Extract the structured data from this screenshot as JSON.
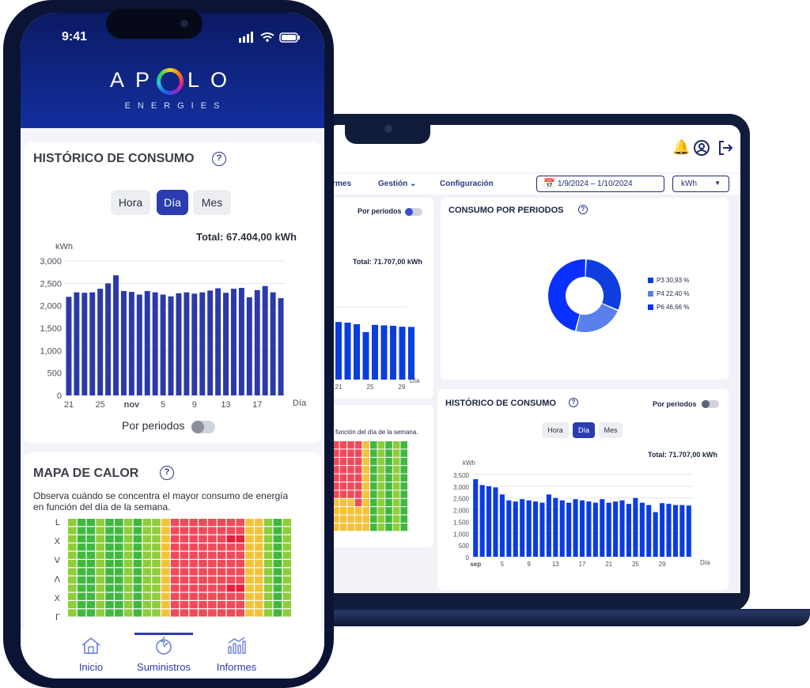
{
  "phone": {
    "status_time": "9:41",
    "brand": {
      "name_left": "AP",
      "name_right": "LO",
      "tagline": "ENERGIES"
    },
    "history": {
      "title": "HISTÓRICO DE CONSUMO",
      "help": "?",
      "tabs": [
        "Hora",
        "Día",
        "Mes"
      ],
      "active_tab": "Día",
      "total": "Total: 67.404,00 kWh",
      "period_toggle_label": "Por periodos"
    },
    "heatmap": {
      "title": "MAPA DE CALOR",
      "help": "?",
      "description_line1": "Observa cuándo se concentra el mayor consumo de energía",
      "description_line2": "en función del día de la semana.",
      "row_labels": [
        "L",
        "X",
        "V",
        "Λ",
        "X",
        "Γ"
      ],
      "colors": {
        "low": "#3fb83f",
        "mid": "#8fcc3a",
        "warm": "#f2c23a",
        "high": "#f04a5a",
        "peak": "#e8203a"
      }
    },
    "bottom_nav": [
      {
        "label": "Inicio",
        "icon": "home-icon"
      },
      {
        "label": "Suministros",
        "icon": "energy-meter-icon"
      },
      {
        "label": "Informes",
        "icon": "reports-chart-icon"
      }
    ],
    "active_nav": "Suministros"
  },
  "laptop": {
    "nav_items": [
      "ormes",
      "Gestión",
      "Configuración"
    ],
    "date_range": "1/9/2024 – 1/10/2024",
    "unit": "kWh",
    "left_card": {
      "toggle_label": "Por periodos",
      "total": "Total: 71.707,00 kWh",
      "x_label": "Día",
      "heatmap_caption": "función del día de la semana."
    },
    "periods": {
      "title": "CONSUMO POR PERIODOS",
      "help": "?",
      "legend": [
        {
          "label": "P3 30,93 %",
          "value": 30.93,
          "color": "#0f3de0"
        },
        {
          "label": "P4 22,40 %",
          "value": 22.4,
          "color": "#5a80ee"
        },
        {
          "label": "P6 46,66 %",
          "value": 46.66,
          "color": "#0a30ff"
        }
      ]
    },
    "history": {
      "title": "HISTÓRICO DE CONSUMO",
      "help": "?",
      "toggle_label": "Por periodos",
      "tabs": [
        "Hora",
        "Día",
        "Mes"
      ],
      "active_tab": "Día",
      "total": "Total: 71.707,00 kWh"
    }
  },
  "chart_data": [
    {
      "type": "bar",
      "ylabel": "kWh",
      "xlabel": "Día",
      "ylim": [
        0,
        3000
      ],
      "yticks": [
        "0",
        "500",
        "1,000",
        "1,500",
        "2,000",
        "2,500",
        "3,000"
      ],
      "xtick_labels": [
        "21",
        "25",
        "nov",
        "5",
        "9",
        "13",
        "17"
      ],
      "values": [
        2200,
        2300,
        2290,
        2300,
        2380,
        2500,
        2680,
        2330,
        2310,
        2250,
        2330,
        2300,
        2250,
        2210,
        2280,
        2300,
        2270,
        2300,
        2340,
        2390,
        2290,
        2380,
        2400,
        2190,
        2350,
        2440,
        2300,
        2170
      ],
      "color": "#2b3aa8"
    },
    {
      "type": "bar",
      "ylabel": "kWh",
      "xlabel": "Día",
      "ylim": [
        0,
        3500
      ],
      "yticks": [
        "0",
        "500",
        "1,000",
        "1,500",
        "2,000",
        "2,500",
        "3,000",
        "3,500"
      ],
      "xtick_labels": [
        "sep",
        "5",
        "9",
        "13",
        "17",
        "21",
        "25",
        "29"
      ],
      "values": [
        3300,
        3050,
        3000,
        2950,
        2650,
        2400,
        2350,
        2450,
        2400,
        2350,
        2300,
        2650,
        2500,
        2400,
        2300,
        2450,
        2400,
        2350,
        2300,
        2450,
        2300,
        2350,
        2400,
        2250,
        2500,
        2300,
        2200,
        1900,
        2280,
        2250,
        2200,
        2200,
        2180
      ],
      "color": "#0a3de0"
    },
    {
      "type": "bar",
      "xlabel": "Día",
      "xtick_labels": [
        "21",
        "25",
        "29"
      ],
      "values": [
        2550,
        2520,
        2450,
        2100,
        2420,
        2400,
        2380,
        2340,
        2330
      ],
      "color": "#0a3de0"
    },
    {
      "type": "pie",
      "categories": [
        "P3",
        "P4",
        "P6"
      ],
      "values": [
        30.93,
        22.4,
        46.66
      ]
    }
  ]
}
